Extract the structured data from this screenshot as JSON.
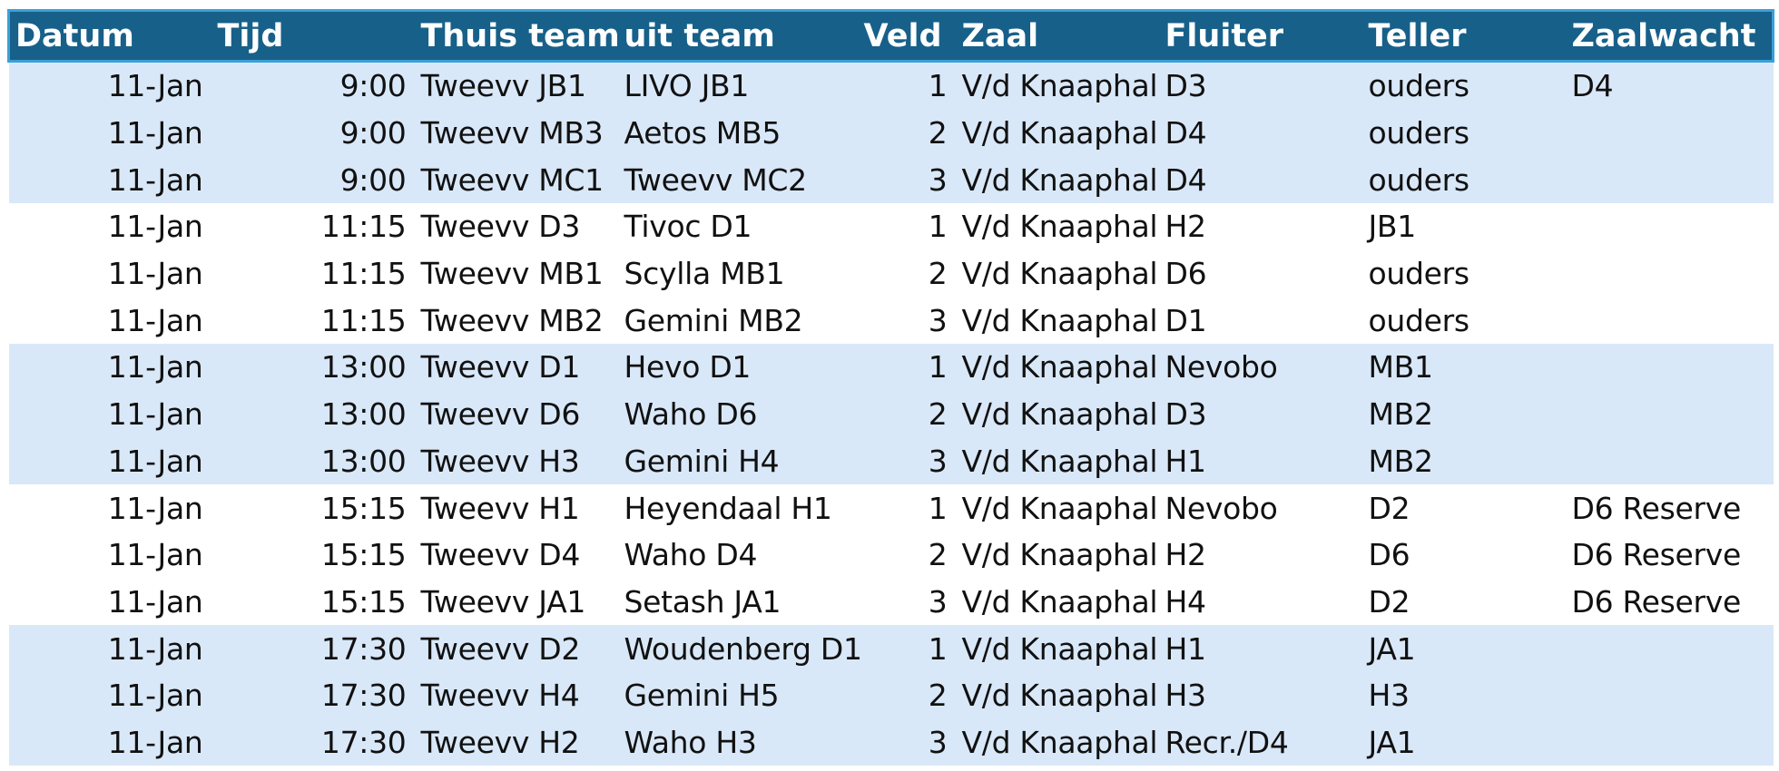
{
  "header": {
    "datum": "Datum",
    "tijd": "Tijd",
    "thuis_team": "Thuis team",
    "uit_team": "uit team",
    "veld": "Veld",
    "zaal": "Zaal",
    "fluiter": "Fluiter",
    "teller": "Teller",
    "zaalwacht": "Zaalwacht"
  },
  "rows": [
    {
      "datum": "11-Jan",
      "tijd": "9:00",
      "thuis": "Tweevv JB1",
      "uit": "LIVO JB1",
      "veld": "1",
      "zaal": "V/d Knaaphal",
      "fluiter": "D3",
      "teller": "ouders",
      "zaalwacht": "D4"
    },
    {
      "datum": "11-Jan",
      "tijd": "9:00",
      "thuis": "Tweevv MB3",
      "uit": "Aetos MB5",
      "veld": "2",
      "zaal": "V/d Knaaphal",
      "fluiter": "D4",
      "teller": "ouders",
      "zaalwacht": ""
    },
    {
      "datum": "11-Jan",
      "tijd": "9:00",
      "thuis": "Tweevv MC1",
      "uit": "Tweevv MC2",
      "veld": "3",
      "zaal": "V/d Knaaphal",
      "fluiter": "D4",
      "teller": "ouders",
      "zaalwacht": ""
    },
    {
      "datum": "11-Jan",
      "tijd": "11:15",
      "thuis": "Tweevv D3",
      "uit": "Tivoc D1",
      "veld": "1",
      "zaal": "V/d Knaaphal",
      "fluiter": "H2",
      "teller": "JB1",
      "zaalwacht": ""
    },
    {
      "datum": "11-Jan",
      "tijd": "11:15",
      "thuis": "Tweevv MB1",
      "uit": "Scylla MB1",
      "veld": "2",
      "zaal": "V/d Knaaphal",
      "fluiter": "D6",
      "teller": "ouders",
      "zaalwacht": ""
    },
    {
      "datum": "11-Jan",
      "tijd": "11:15",
      "thuis": "Tweevv MB2",
      "uit": "Gemini MB2",
      "veld": "3",
      "zaal": "V/d Knaaphal",
      "fluiter": "D1",
      "teller": "ouders",
      "zaalwacht": ""
    },
    {
      "datum": "11-Jan",
      "tijd": "13:00",
      "thuis": "Tweevv D1",
      "uit": "Hevo D1",
      "veld": "1",
      "zaal": "V/d Knaaphal",
      "fluiter": "Nevobo",
      "teller": "MB1",
      "zaalwacht": ""
    },
    {
      "datum": "11-Jan",
      "tijd": "13:00",
      "thuis": "Tweevv D6",
      "uit": "Waho D6",
      "veld": "2",
      "zaal": "V/d Knaaphal",
      "fluiter": "D3",
      "teller": "MB2",
      "zaalwacht": ""
    },
    {
      "datum": "11-Jan",
      "tijd": "13:00",
      "thuis": "Tweevv H3",
      "uit": "Gemini H4",
      "veld": "3",
      "zaal": "V/d Knaaphal",
      "fluiter": "H1",
      "teller": "MB2",
      "zaalwacht": ""
    },
    {
      "datum": "11-Jan",
      "tijd": "15:15",
      "thuis": "Tweevv H1",
      "uit": "Heyendaal H1",
      "veld": "1",
      "zaal": "V/d Knaaphal",
      "fluiter": "Nevobo",
      "teller": "D2",
      "zaalwacht": "D6 Reserve"
    },
    {
      "datum": "11-Jan",
      "tijd": "15:15",
      "thuis": "Tweevv D4",
      "uit": "Waho D4",
      "veld": "2",
      "zaal": "V/d Knaaphal",
      "fluiter": "H2",
      "teller": "D6",
      "zaalwacht": "D6 Reserve"
    },
    {
      "datum": "11-Jan",
      "tijd": "15:15",
      "thuis": "Tweevv JA1",
      "uit": "Setash JA1",
      "veld": "3",
      "zaal": "V/d Knaaphal",
      "fluiter": "H4",
      "teller": "D2",
      "zaalwacht": "D6 Reserve"
    },
    {
      "datum": "11-Jan",
      "tijd": "17:30",
      "thuis": "Tweevv D2",
      "uit": "Woudenberg D1",
      "veld": "1",
      "zaal": "V/d Knaaphal",
      "fluiter": "H1",
      "teller": "JA1",
      "zaalwacht": ""
    },
    {
      "datum": "11-Jan",
      "tijd": "17:30",
      "thuis": "Tweevv H4",
      "uit": "Gemini H5",
      "veld": "2",
      "zaal": "V/d Knaaphal",
      "fluiter": "H3",
      "teller": "H3",
      "zaalwacht": ""
    },
    {
      "datum": "11-Jan",
      "tijd": "17:30",
      "thuis": "Tweevv H2",
      "uit": "Waho H3",
      "veld": "3",
      "zaal": "V/d Knaaphal",
      "fluiter": "Recr./D4",
      "teller": "JA1",
      "zaalwacht": ""
    }
  ]
}
